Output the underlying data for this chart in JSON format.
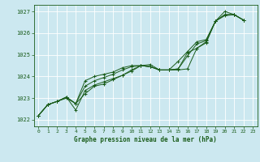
{
  "xlabel": "Graphe pression niveau de la mer (hPa)",
  "ylim": [
    1021.7,
    1027.3
  ],
  "xlim": [
    -0.5,
    23.5
  ],
  "yticks": [
    1022,
    1023,
    1024,
    1025,
    1026,
    1027
  ],
  "xticks": [
    0,
    1,
    2,
    3,
    4,
    5,
    6,
    7,
    8,
    9,
    10,
    11,
    12,
    13,
    14,
    15,
    16,
    17,
    18,
    19,
    20,
    21,
    22,
    23
  ],
  "bg_color": "#cce8f0",
  "grid_color": "#b0d8e8",
  "line_color": "#1a5c1a",
  "line1": [
    1022.2,
    1022.7,
    1022.85,
    1023.0,
    1022.75,
    1023.2,
    1023.55,
    1023.65,
    1023.85,
    1024.05,
    1024.25,
    1024.5,
    1024.55,
    1024.3,
    1024.3,
    1024.3,
    1024.35,
    1025.3,
    1025.55,
    1026.55,
    1026.8,
    1026.85,
    1026.6
  ],
  "line2": [
    1022.2,
    1022.7,
    1022.85,
    1023.05,
    1022.45,
    1023.35,
    1023.6,
    1023.75,
    1023.9,
    1024.05,
    1024.3,
    1024.5,
    1024.45,
    1024.3,
    1024.3,
    1024.35,
    1024.95,
    1025.5,
    1025.65,
    1026.55,
    1026.85,
    1026.85,
    1026.6
  ],
  "line3": [
    1022.2,
    1022.7,
    1022.85,
    1023.05,
    1022.75,
    1023.55,
    1023.8,
    1023.95,
    1024.1,
    1024.3,
    1024.45,
    1024.5,
    1024.45,
    1024.3,
    1024.3,
    1024.7,
    1025.15,
    1025.6,
    1025.7,
    1026.55,
    1026.85,
    1026.85,
    1026.6
  ],
  "line4": [
    1022.2,
    1022.7,
    1022.85,
    1023.05,
    1022.75,
    1023.8,
    1024.0,
    1024.1,
    1024.2,
    1024.4,
    1024.5,
    1024.5,
    1024.45,
    1024.3,
    1024.3,
    1024.35,
    1025.1,
    1025.3,
    1025.6,
    1026.55,
    1027.0,
    1026.85,
    1026.6
  ]
}
